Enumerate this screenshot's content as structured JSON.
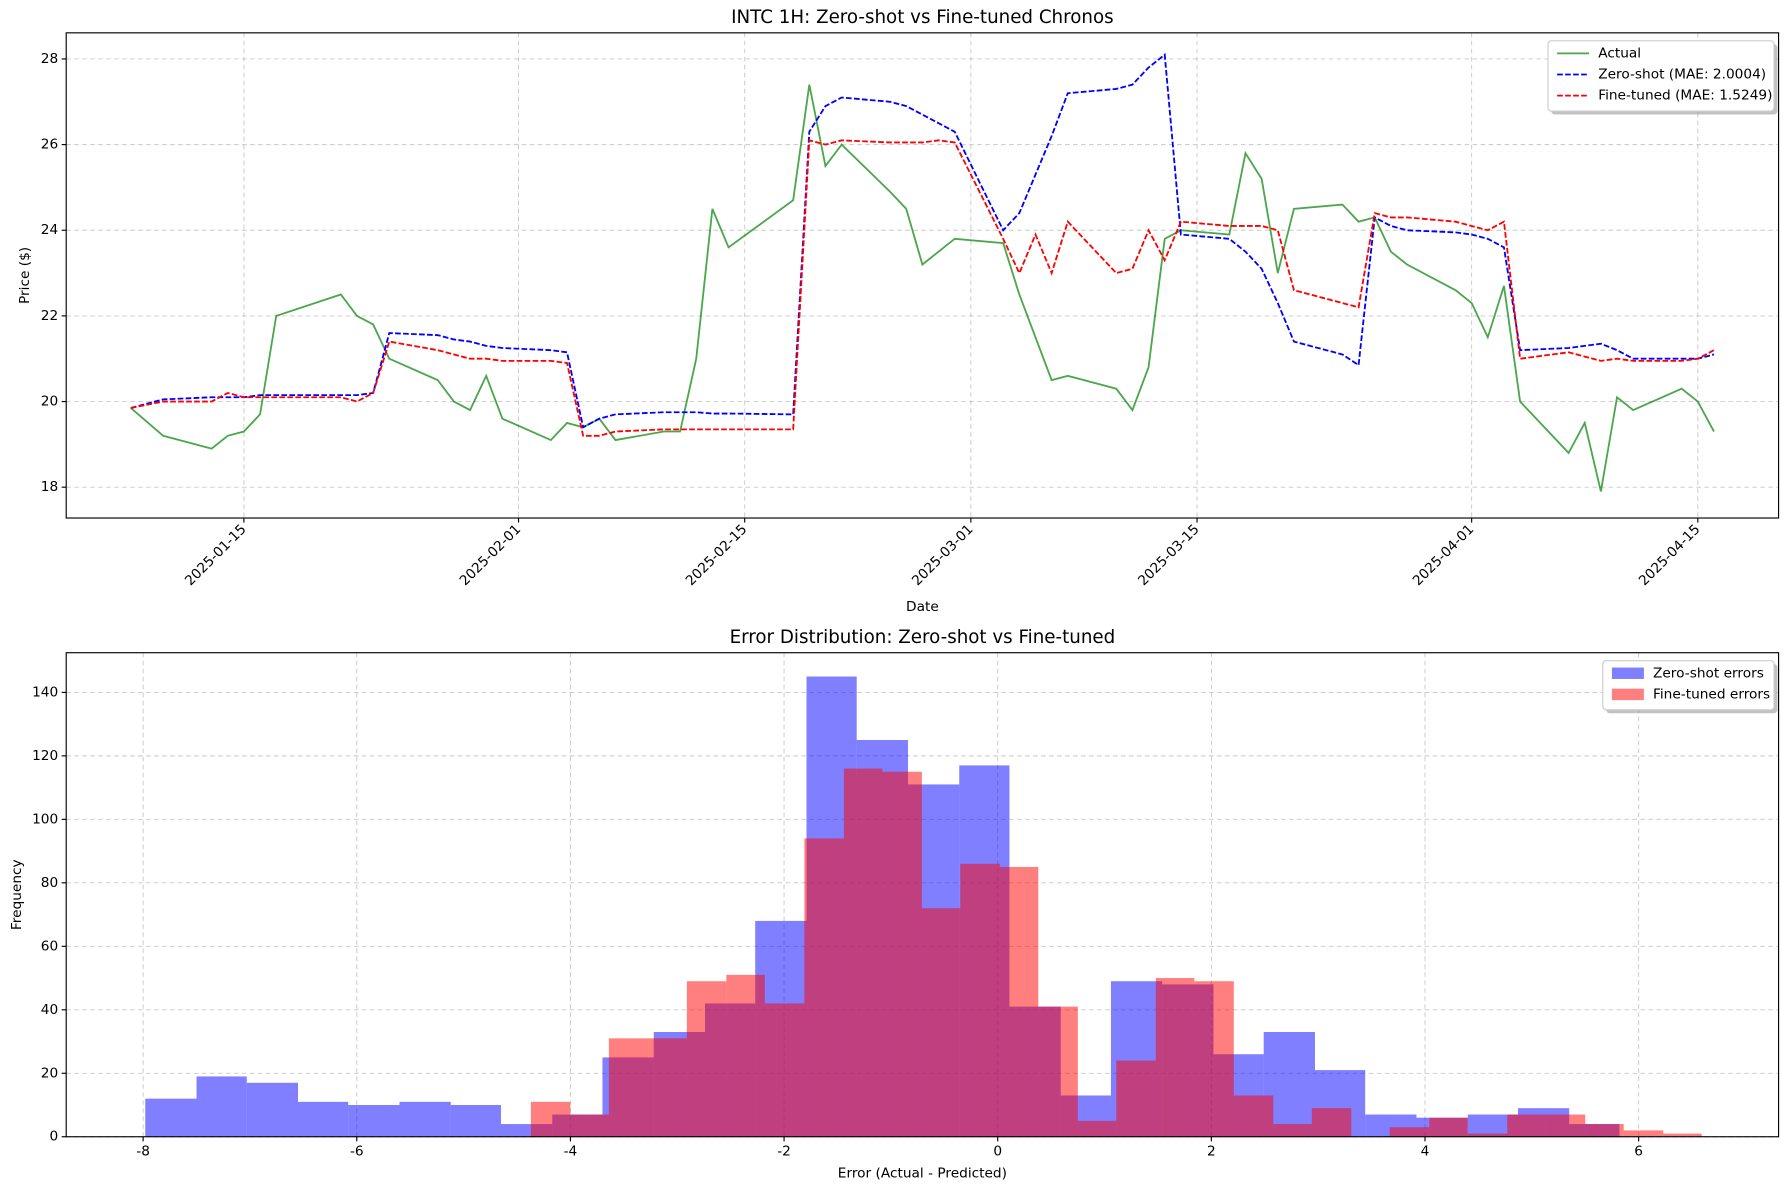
{
  "chart_data": [
    {
      "type": "line",
      "title": "INTC 1H: Zero-shot vs Fine-tuned Chronos",
      "x_label": "Date",
      "y_label": "Price ($)",
      "x": [
        "2025-01-08",
        "2025-01-10",
        "2025-01-13",
        "2025-01-14",
        "2025-01-15",
        "2025-01-16",
        "2025-01-17",
        "2025-01-21",
        "2025-01-22",
        "2025-01-23",
        "2025-01-24",
        "2025-01-27",
        "2025-01-28",
        "2025-01-29",
        "2025-01-30",
        "2025-01-31",
        "2025-02-03",
        "2025-02-04",
        "2025-02-05",
        "2025-02-06",
        "2025-02-07",
        "2025-02-10",
        "2025-02-11",
        "2025-02-12",
        "2025-02-13",
        "2025-02-14",
        "2025-02-18",
        "2025-02-19",
        "2025-02-20",
        "2025-02-21",
        "2025-02-24",
        "2025-02-25",
        "2025-02-26",
        "2025-02-27",
        "2025-02-28",
        "2025-03-03",
        "2025-03-04",
        "2025-03-05",
        "2025-03-06",
        "2025-03-07",
        "2025-03-10",
        "2025-03-11",
        "2025-03-12",
        "2025-03-13",
        "2025-03-14",
        "2025-03-17",
        "2025-03-18",
        "2025-03-19",
        "2025-03-20",
        "2025-03-21",
        "2025-03-24",
        "2025-03-25",
        "2025-03-26",
        "2025-03-27",
        "2025-03-28",
        "2025-03-31",
        "2025-04-01",
        "2025-04-02",
        "2025-04-03",
        "2025-04-04",
        "2025-04-07",
        "2025-04-08",
        "2025-04-09",
        "2025-04-10",
        "2025-04-11",
        "2025-04-14",
        "2025-04-15",
        "2025-04-16"
      ],
      "series": [
        {
          "name": "Actual",
          "color": "green",
          "alpha": 0.7,
          "dash": "solid",
          "values": [
            19.85,
            19.2,
            18.9,
            19.2,
            19.3,
            19.7,
            22.0,
            22.5,
            22.0,
            21.8,
            21.0,
            20.5,
            20.0,
            19.8,
            20.6,
            19.6,
            19.1,
            19.5,
            19.4,
            19.6,
            19.1,
            19.3,
            19.3,
            21.0,
            24.5,
            23.6,
            24.7,
            27.4,
            25.5,
            26.0,
            24.9,
            24.5,
            23.2,
            23.5,
            23.8,
            23.7,
            22.5,
            21.5,
            20.5,
            20.6,
            20.3,
            19.8,
            20.8,
            23.8,
            24.0,
            23.9,
            25.8,
            25.2,
            23.0,
            24.5,
            24.6,
            24.2,
            24.3,
            23.5,
            23.2,
            22.6,
            22.3,
            21.5,
            22.7,
            20.0,
            18.8,
            19.5,
            17.9,
            20.1,
            19.8,
            20.3,
            20.0,
            19.3
          ]
        },
        {
          "name": "Zero-shot (MAE: 2.0004)",
          "color": "blue",
          "alpha": 1,
          "dash": "dashed",
          "values": [
            19.85,
            20.05,
            20.1,
            20.1,
            20.1,
            20.15,
            20.15,
            20.15,
            20.15,
            20.2,
            21.6,
            21.55,
            21.45,
            21.4,
            21.3,
            21.25,
            21.2,
            21.15,
            19.4,
            19.6,
            19.7,
            19.75,
            19.75,
            19.75,
            19.72,
            19.72,
            19.7,
            26.3,
            26.9,
            27.1,
            27.0,
            26.9,
            26.7,
            26.5,
            26.3,
            24.0,
            24.4,
            25.3,
            26.2,
            27.2,
            27.3,
            27.4,
            27.8,
            28.1,
            23.9,
            23.8,
            23.5,
            23.1,
            22.3,
            21.4,
            21.1,
            20.85,
            24.3,
            24.1,
            24.0,
            23.95,
            23.9,
            23.8,
            23.6,
            21.2,
            21.25,
            21.3,
            21.35,
            21.2,
            21.0,
            21.0,
            21.0,
            21.1
          ]
        },
        {
          "name": "Fine-tuned (MAE: 1.5249)",
          "color": "red",
          "alpha": 1,
          "dash": "dashed",
          "values": [
            19.85,
            20.0,
            20.0,
            20.2,
            20.1,
            20.1,
            20.1,
            20.1,
            20.0,
            20.2,
            21.4,
            21.2,
            21.1,
            21.0,
            21.0,
            20.95,
            20.95,
            20.9,
            19.2,
            19.2,
            19.3,
            19.35,
            19.35,
            19.35,
            19.35,
            19.35,
            19.35,
            26.1,
            26.0,
            26.1,
            26.05,
            26.05,
            26.05,
            26.1,
            26.05,
            23.8,
            23.0,
            23.9,
            23.0,
            24.2,
            23.0,
            23.1,
            24.0,
            23.3,
            24.2,
            24.1,
            24.1,
            24.1,
            24.0,
            22.6,
            22.3,
            22.2,
            24.4,
            24.3,
            24.3,
            24.2,
            24.1,
            24.0,
            24.2,
            21.0,
            21.15,
            21.05,
            20.95,
            21.0,
            20.95,
            20.95,
            21.0,
            21.2
          ]
        }
      ],
      "xlim": [
        "2025-01-04",
        "2025-04-20"
      ],
      "xticks": [
        "2025-01-15",
        "2025-02-01",
        "2025-02-15",
        "2025-03-01",
        "2025-03-15",
        "2025-04-01",
        "2025-04-15"
      ],
      "ylim": [
        17.28,
        28.61
      ],
      "yticks": [
        18,
        20,
        22,
        24,
        26,
        28
      ],
      "grid": true,
      "legend": "upper right"
    },
    {
      "type": "histogram",
      "title": "Error Distribution: Zero-shot vs Fine-tuned",
      "x_label": "Error (Actual - Predicted)",
      "y_label": "Frequency",
      "series": [
        {
          "name": "Zero-shot errors",
          "color": "blue",
          "alpha": 0.5,
          "bins": [
            -7.98,
            -7.5,
            -7.03,
            -6.55,
            -6.08,
            -5.6,
            -5.12,
            -4.65,
            -4.17,
            -3.7,
            -3.22,
            -2.74,
            -2.27,
            -1.79,
            -1.32,
            -0.84,
            -0.36,
            0.11,
            0.59,
            1.06,
            1.54,
            2.02,
            2.49,
            2.97,
            3.44,
            3.92,
            4.4,
            4.87,
            5.35,
            5.82
          ],
          "values": [
            12,
            19,
            17,
            11,
            10,
            11,
            10,
            4,
            7,
            25,
            33,
            42,
            68,
            145,
            125,
            111,
            117,
            41,
            13,
            49,
            48,
            26,
            33,
            21,
            7,
            6,
            7,
            9,
            4
          ]
        },
        {
          "name": "Fine-tuned errors",
          "color": "red",
          "alpha": 0.5,
          "bins": [
            -4.37,
            -4.0,
            -3.64,
            -3.27,
            -2.91,
            -2.54,
            -2.18,
            -1.81,
            -1.44,
            -1.08,
            -0.71,
            -0.35,
            0.02,
            0.38,
            0.75,
            1.11,
            1.48,
            1.84,
            2.21,
            2.58,
            2.94,
            3.31,
            3.67,
            4.04,
            4.4,
            4.77,
            5.13,
            5.5,
            5.86,
            6.23,
            6.59
          ],
          "values": [
            11,
            7,
            31,
            31,
            49,
            51,
            42,
            94,
            116,
            115,
            72,
            86,
            85,
            41,
            5,
            24,
            50,
            49,
            13,
            4,
            9,
            0,
            3,
            6,
            1,
            7,
            7,
            4,
            2,
            1
          ]
        }
      ],
      "xlim": [
        -8.72,
        7.31
      ],
      "xticks": [
        -8,
        -6,
        -4,
        -2,
        0,
        2,
        4,
        6
      ],
      "ylim": [
        0,
        152.5
      ],
      "yticks": [
        0,
        20,
        40,
        60,
        80,
        100,
        120,
        140
      ],
      "grid": true,
      "legend": "upper right"
    }
  ]
}
